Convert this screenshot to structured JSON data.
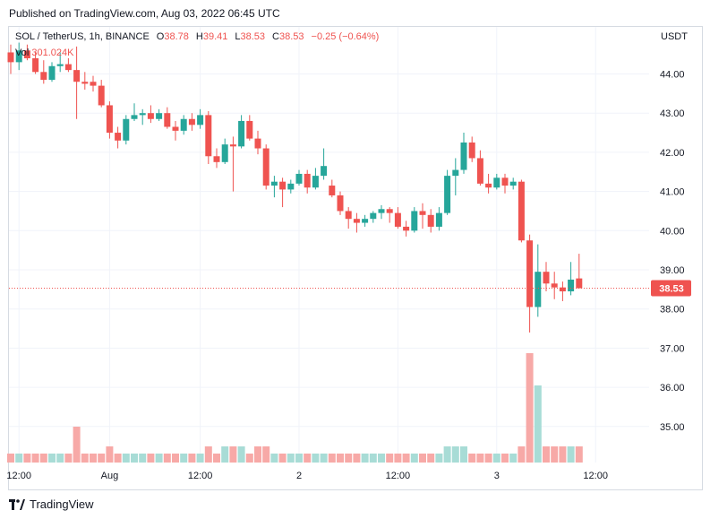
{
  "published": "Published on TradingView.com, Aug 03, 2022 06:45 UTC",
  "legend": {
    "symbol": "SOL / TetherUS, 1h, BINANCE",
    "o_label": "O",
    "o_value": "38.78",
    "h_label": "H",
    "h_value": "39.41",
    "l_label": "L",
    "l_value": "38.53",
    "c_label": "C",
    "c_value": "38.53",
    "change": "−0.25 (−0.64%)",
    "vol_label": "Vol",
    "vol_value": "301.024K"
  },
  "currency": "USDT",
  "footer": {
    "brand": "TradingView"
  },
  "colors": {
    "up": "#26a69a",
    "down": "#ef5350",
    "vol_up": "#a8dcd6",
    "vol_down": "#f7a9a7",
    "grid": "#f0f3fa",
    "last_price_line": "#ef5350"
  },
  "chart_data": {
    "type": "candlestick",
    "interval": "1h",
    "y_ticks": [
      "35.00",
      "36.00",
      "37.00",
      "38.00",
      "39.00",
      "40.00",
      "41.00",
      "42.00",
      "43.00",
      "44.00"
    ],
    "ylim": [
      34.3,
      45.1
    ],
    "x_ticks": [
      "12:00",
      "Aug",
      "12:00",
      "2",
      "12:00",
      "3",
      "12:00"
    ],
    "x_tick_index": [
      1,
      12,
      23,
      35,
      47,
      59,
      71
    ],
    "last_price": "38.53",
    "candles": [
      {
        "o": 44.55,
        "h": 44.75,
        "l": 44.0,
        "c": 44.3,
        "v": "low"
      },
      {
        "o": 44.3,
        "h": 44.8,
        "l": 44.1,
        "c": 44.6,
        "v": "low"
      },
      {
        "o": 44.6,
        "h": 44.75,
        "l": 44.35,
        "c": 44.4,
        "v": "low"
      },
      {
        "o": 44.4,
        "h": 44.55,
        "l": 44.0,
        "c": 44.05,
        "v": "low"
      },
      {
        "o": 44.05,
        "h": 44.35,
        "l": 43.75,
        "c": 43.85,
        "v": "low"
      },
      {
        "o": 43.85,
        "h": 44.3,
        "l": 43.8,
        "c": 44.2,
        "v": "low"
      },
      {
        "o": 44.2,
        "h": 44.55,
        "l": 44.05,
        "c": 44.25,
        "v": "low"
      },
      {
        "o": 44.25,
        "h": 44.4,
        "l": 44.05,
        "c": 44.1,
        "v": "low"
      },
      {
        "o": 44.1,
        "h": 44.7,
        "l": 42.85,
        "c": 43.8,
        "v": "high"
      },
      {
        "o": 43.8,
        "h": 44.05,
        "l": 43.6,
        "c": 43.75,
        "v": "low"
      },
      {
        "o": 43.8,
        "h": 43.95,
        "l": 43.55,
        "c": 43.7,
        "v": "low"
      },
      {
        "o": 43.7,
        "h": 43.85,
        "l": 43.15,
        "c": 43.2,
        "v": "low"
      },
      {
        "o": 43.2,
        "h": 43.3,
        "l": 42.35,
        "c": 42.5,
        "v": "mid"
      },
      {
        "o": 42.5,
        "h": 42.65,
        "l": 42.1,
        "c": 42.3,
        "v": "low"
      },
      {
        "o": 42.3,
        "h": 42.95,
        "l": 42.2,
        "c": 42.85,
        "v": "low"
      },
      {
        "o": 42.85,
        "h": 43.25,
        "l": 42.8,
        "c": 42.95,
        "v": "low"
      },
      {
        "o": 42.95,
        "h": 43.1,
        "l": 42.7,
        "c": 43.0,
        "v": "low"
      },
      {
        "o": 43.0,
        "h": 43.2,
        "l": 42.75,
        "c": 42.85,
        "v": "low"
      },
      {
        "o": 42.85,
        "h": 43.1,
        "l": 42.8,
        "c": 43.0,
        "v": "low"
      },
      {
        "o": 43.0,
        "h": 43.15,
        "l": 42.6,
        "c": 42.65,
        "v": "low"
      },
      {
        "o": 42.65,
        "h": 42.8,
        "l": 42.3,
        "c": 42.55,
        "v": "low"
      },
      {
        "o": 42.55,
        "h": 42.95,
        "l": 42.45,
        "c": 42.85,
        "v": "low"
      },
      {
        "o": 42.85,
        "h": 43.0,
        "l": 42.55,
        "c": 42.7,
        "v": "low"
      },
      {
        "o": 42.7,
        "h": 43.1,
        "l": 42.6,
        "c": 42.95,
        "v": "low"
      },
      {
        "o": 42.95,
        "h": 43.05,
        "l": 41.7,
        "c": 41.9,
        "v": "mid"
      },
      {
        "o": 41.9,
        "h": 42.1,
        "l": 41.6,
        "c": 41.75,
        "v": "low"
      },
      {
        "o": 41.75,
        "h": 42.35,
        "l": 41.7,
        "c": 42.2,
        "v": "mid"
      },
      {
        "o": 42.2,
        "h": 42.4,
        "l": 41.0,
        "c": 42.15,
        "v": "mid"
      },
      {
        "o": 42.15,
        "h": 42.95,
        "l": 42.1,
        "c": 42.8,
        "v": "mid"
      },
      {
        "o": 42.8,
        "h": 42.95,
        "l": 42.3,
        "c": 42.35,
        "v": "low"
      },
      {
        "o": 42.35,
        "h": 42.55,
        "l": 41.95,
        "c": 42.1,
        "v": "mid"
      },
      {
        "o": 42.1,
        "h": 42.2,
        "l": 41.05,
        "c": 41.15,
        "v": "mid"
      },
      {
        "o": 41.15,
        "h": 41.4,
        "l": 40.85,
        "c": 41.25,
        "v": "low"
      },
      {
        "o": 41.25,
        "h": 41.35,
        "l": 40.6,
        "c": 41.05,
        "v": "low"
      },
      {
        "o": 41.05,
        "h": 41.3,
        "l": 40.95,
        "c": 41.2,
        "v": "low"
      },
      {
        "o": 41.2,
        "h": 41.55,
        "l": 41.15,
        "c": 41.45,
        "v": "low"
      },
      {
        "o": 41.45,
        "h": 41.55,
        "l": 40.95,
        "c": 41.1,
        "v": "low"
      },
      {
        "o": 41.1,
        "h": 41.6,
        "l": 41.05,
        "c": 41.4,
        "v": "low"
      },
      {
        "o": 41.4,
        "h": 42.1,
        "l": 41.3,
        "c": 41.65,
        "v": "low"
      },
      {
        "o": 41.15,
        "h": 41.3,
        "l": 40.85,
        "c": 40.9,
        "v": "low"
      },
      {
        "o": 40.9,
        "h": 41.0,
        "l": 40.4,
        "c": 40.5,
        "v": "low"
      },
      {
        "o": 40.5,
        "h": 40.6,
        "l": 40.05,
        "c": 40.3,
        "v": "low"
      },
      {
        "o": 40.3,
        "h": 40.45,
        "l": 39.95,
        "c": 40.2,
        "v": "low"
      },
      {
        "o": 40.2,
        "h": 40.4,
        "l": 40.1,
        "c": 40.3,
        "v": "low"
      },
      {
        "o": 40.3,
        "h": 40.5,
        "l": 40.2,
        "c": 40.45,
        "v": "low"
      },
      {
        "o": 40.45,
        "h": 40.65,
        "l": 40.3,
        "c": 40.55,
        "v": "low"
      },
      {
        "o": 40.55,
        "h": 40.6,
        "l": 40.2,
        "c": 40.45,
        "v": "low"
      },
      {
        "o": 40.45,
        "h": 40.6,
        "l": 40.05,
        "c": 40.1,
        "v": "low"
      },
      {
        "o": 40.1,
        "h": 40.25,
        "l": 39.85,
        "c": 40.0,
        "v": "low"
      },
      {
        "o": 40.0,
        "h": 40.6,
        "l": 39.95,
        "c": 40.5,
        "v": "low"
      },
      {
        "o": 40.5,
        "h": 40.7,
        "l": 40.05,
        "c": 40.4,
        "v": "low"
      },
      {
        "o": 40.4,
        "h": 40.55,
        "l": 39.95,
        "c": 40.1,
        "v": "low"
      },
      {
        "o": 40.1,
        "h": 40.6,
        "l": 40.0,
        "c": 40.45,
        "v": "low"
      },
      {
        "o": 40.45,
        "h": 41.55,
        "l": 40.4,
        "c": 41.4,
        "v": "mid"
      },
      {
        "o": 41.4,
        "h": 41.85,
        "l": 40.9,
        "c": 41.55,
        "v": "mid"
      },
      {
        "o": 41.55,
        "h": 42.5,
        "l": 41.45,
        "c": 42.25,
        "v": "mid"
      },
      {
        "o": 42.25,
        "h": 42.4,
        "l": 41.75,
        "c": 41.85,
        "v": "low"
      },
      {
        "o": 41.85,
        "h": 42.05,
        "l": 41.15,
        "c": 41.2,
        "v": "low"
      },
      {
        "o": 41.2,
        "h": 41.45,
        "l": 40.95,
        "c": 41.1,
        "v": "low"
      },
      {
        "o": 41.1,
        "h": 41.45,
        "l": 41.05,
        "c": 41.35,
        "v": "low"
      },
      {
        "o": 41.35,
        "h": 41.45,
        "l": 40.95,
        "c": 41.15,
        "v": "low"
      },
      {
        "o": 41.15,
        "h": 41.35,
        "l": 41.05,
        "c": 41.25,
        "v": "low"
      },
      {
        "o": 41.25,
        "h": 41.3,
        "l": 39.7,
        "c": 39.75,
        "v": "mid"
      },
      {
        "o": 39.75,
        "h": 39.9,
        "l": 37.4,
        "c": 38.05,
        "v": "high"
      },
      {
        "o": 38.05,
        "h": 39.65,
        "l": 37.8,
        "c": 38.95,
        "v": "mid"
      },
      {
        "o": 38.95,
        "h": 39.2,
        "l": 38.45,
        "c": 38.65,
        "v": "mid"
      },
      {
        "o": 38.65,
        "h": 38.95,
        "l": 38.25,
        "c": 38.55,
        "v": "mid"
      },
      {
        "o": 38.55,
        "h": 38.7,
        "l": 38.2,
        "c": 38.45,
        "v": "mid"
      },
      {
        "o": 38.45,
        "h": 39.2,
        "l": 38.35,
        "c": 38.75,
        "v": "mid"
      },
      {
        "o": 38.78,
        "h": 39.41,
        "l": 38.53,
        "c": 38.53,
        "v": "mid"
      }
    ]
  }
}
